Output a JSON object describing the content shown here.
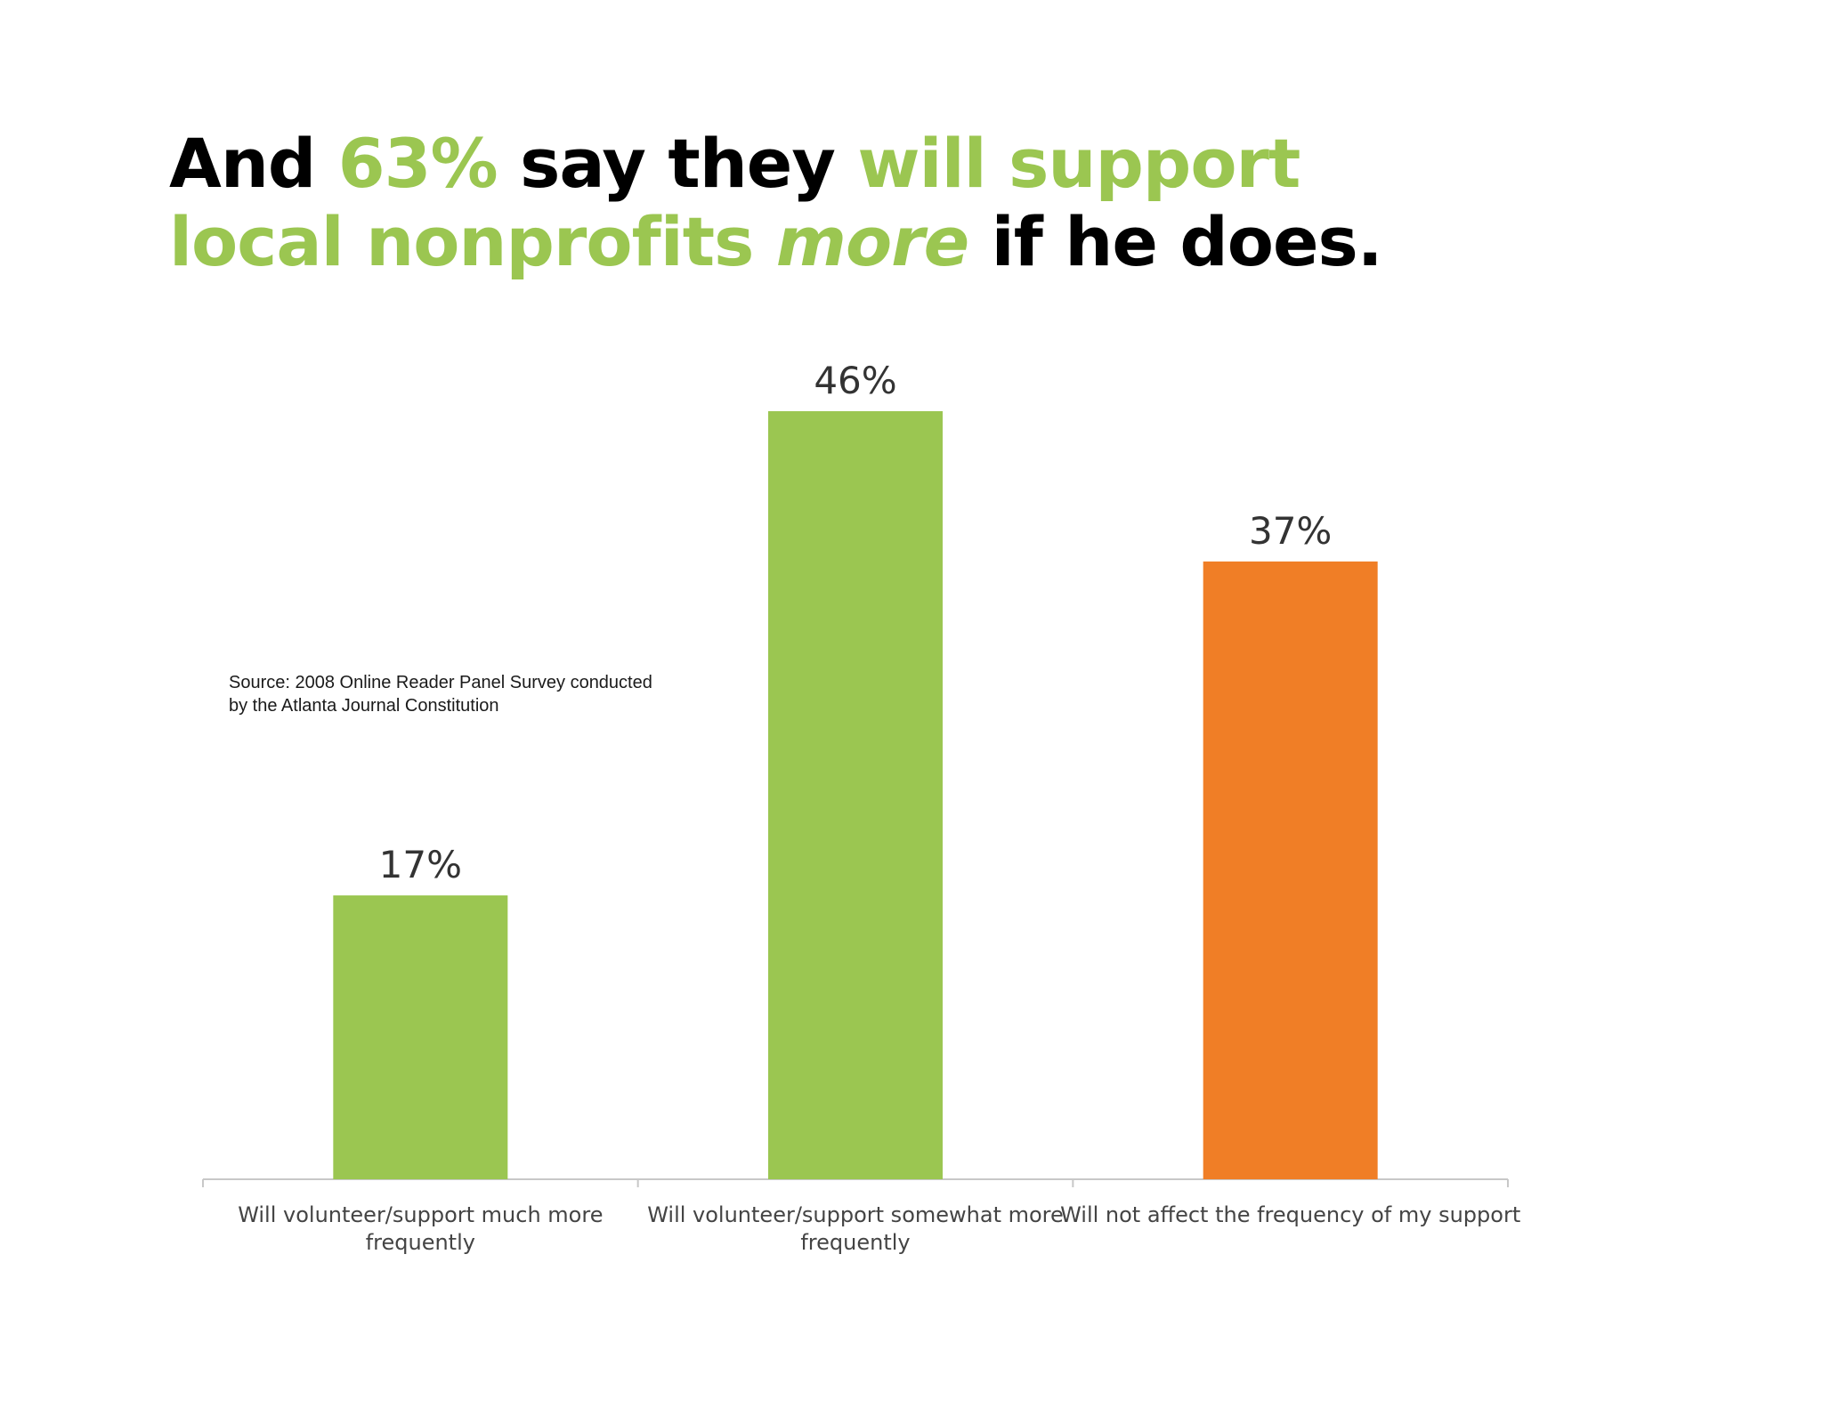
{
  "headline": {
    "part1": "And ",
    "part2": "63%",
    "part3": " say they ",
    "part4": "will support local nonprofits ",
    "part5": "more",
    "part6": " if he does."
  },
  "source_note": {
    "line1": "Source: 2008 Online Reader Panel Survey conducted",
    "line2": "by the Atlanta Journal Constitution"
  },
  "colors": {
    "green": "#9bc651",
    "orange": "#f07e26",
    "text": "#000000",
    "axis": "#c8c8c8"
  },
  "chart_data": {
    "type": "bar",
    "title": "",
    "xlabel": "",
    "ylabel": "",
    "ylim": [
      0,
      46
    ],
    "grid": false,
    "categories": [
      [
        "Will volunteer/support much more",
        "frequently"
      ],
      [
        "Will volunteer/support somewhat more",
        "frequently"
      ],
      [
        "Will not affect the frequency of my support"
      ]
    ],
    "values": [
      17,
      46,
      37
    ],
    "value_labels": [
      "17%",
      "46%",
      "37%"
    ],
    "bar_colors": [
      "#9bc651",
      "#9bc651",
      "#f07e26"
    ]
  }
}
